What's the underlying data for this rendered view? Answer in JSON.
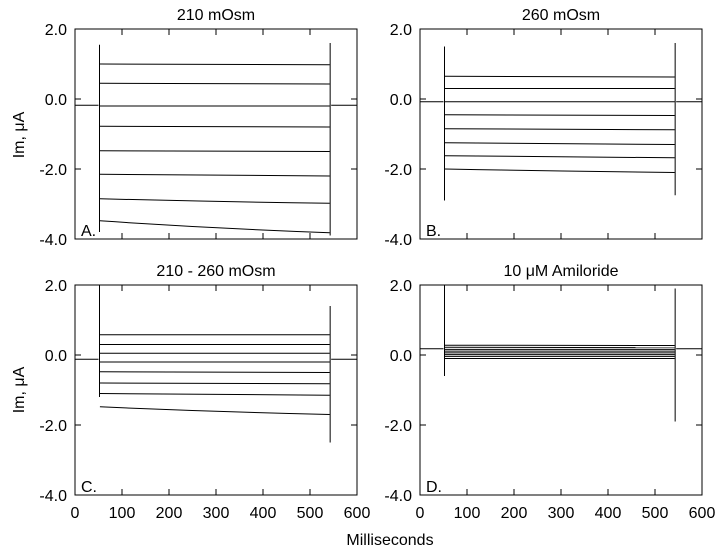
{
  "figure": {
    "xlabel": "Milliseconds",
    "ylabel": "Im, μA"
  },
  "chart_data": [
    {
      "type": "line",
      "title": "210 mOsm",
      "panel_label": "A.",
      "xlim": [
        0,
        600
      ],
      "ylim": [
        -4,
        2
      ],
      "xticks": [
        "0",
        "100",
        "200",
        "300",
        "400",
        "500",
        "600"
      ],
      "yticks": [
        "-4.0",
        "-2.0",
        "0.0",
        "2.0"
      ],
      "show_x_tick_labels": false,
      "show_y_tick_labels": true,
      "holding_current": -0.18,
      "pulse_start_ms": 50,
      "pulse_end_ms": 545,
      "steps": [
        {
          "start": 1.0,
          "end": 0.98
        },
        {
          "start": 0.45,
          "end": 0.43
        },
        {
          "start": -0.2,
          "end": -0.2
        },
        {
          "start": -0.78,
          "end": -0.8
        },
        {
          "start": -1.48,
          "end": -1.5
        },
        {
          "start": -2.15,
          "end": -2.2
        },
        {
          "start": -2.85,
          "end": -2.98
        },
        {
          "start": -3.48,
          "end": -3.82
        }
      ],
      "spike": {
        "on_max": 1.55,
        "on_min": -3.8,
        "off_max": 1.6,
        "off_min": -3.9
      }
    },
    {
      "type": "line",
      "title": "260 mOsm",
      "panel_label": "B.",
      "xlim": [
        0,
        600
      ],
      "ylim": [
        -4,
        2
      ],
      "xticks": [
        "0",
        "100",
        "200",
        "300",
        "400",
        "500",
        "600"
      ],
      "yticks": [
        "-4.0",
        "-2.0",
        "0.0",
        "2.0"
      ],
      "show_x_tick_labels": false,
      "show_y_tick_labels": true,
      "holding_current": -0.08,
      "pulse_start_ms": 50,
      "pulse_end_ms": 545,
      "steps": [
        {
          "start": 0.65,
          "end": 0.63
        },
        {
          "start": 0.3,
          "end": 0.3
        },
        {
          "start": -0.08,
          "end": -0.08
        },
        {
          "start": -0.45,
          "end": -0.47
        },
        {
          "start": -0.85,
          "end": -0.88
        },
        {
          "start": -1.25,
          "end": -1.3
        },
        {
          "start": -1.62,
          "end": -1.68
        },
        {
          "start": -2.0,
          "end": -2.1
        }
      ],
      "spike": {
        "on_max": 1.5,
        "on_min": -2.9,
        "off_max": 1.6,
        "off_min": -2.75
      }
    },
    {
      "type": "line",
      "title": "210 - 260 mOsm",
      "panel_label": "C.",
      "xlim": [
        0,
        600
      ],
      "ylim": [
        -4,
        2
      ],
      "xticks": [
        "0",
        "100",
        "200",
        "300",
        "400",
        "500",
        "600"
      ],
      "yticks": [
        "-4.0",
        "-2.0",
        "0.0",
        "2.0"
      ],
      "show_x_tick_labels": true,
      "show_y_tick_labels": true,
      "holding_current": -0.12,
      "pulse_start_ms": 50,
      "pulse_end_ms": 545,
      "steps": [
        {
          "start": 0.58,
          "end": 0.58
        },
        {
          "start": 0.3,
          "end": 0.3
        },
        {
          "start": 0.05,
          "end": 0.05
        },
        {
          "start": -0.2,
          "end": -0.2
        },
        {
          "start": -0.48,
          "end": -0.5
        },
        {
          "start": -0.8,
          "end": -0.82
        },
        {
          "start": -1.1,
          "end": -1.15
        },
        {
          "start": -1.48,
          "end": -1.7
        }
      ],
      "spike": {
        "on_max": 2.0,
        "on_min": -1.2,
        "off_max": 1.4,
        "off_min": -2.5
      }
    },
    {
      "type": "line",
      "title": "10 μM Amiloride",
      "panel_label": "D.",
      "xlim": [
        0,
        600
      ],
      "ylim": [
        -4,
        2
      ],
      "xticks": [
        "0",
        "100",
        "200",
        "300",
        "400",
        "500",
        "600"
      ],
      "yticks": [
        "-4.0",
        "-2.0",
        "0.0",
        "2.0"
      ],
      "show_x_tick_labels": true,
      "show_y_tick_labels": true,
      "holding_current": 0.18,
      "pulse_start_ms": 50,
      "pulse_end_ms": 545,
      "steps": [
        {
          "start": 0.28,
          "end": 0.27
        },
        {
          "start": 0.22,
          "end": 0.21
        },
        {
          "start": 0.16,
          "end": 0.16
        },
        {
          "start": 0.11,
          "end": 0.11
        },
        {
          "start": 0.06,
          "end": 0.06
        },
        {
          "start": 0.01,
          "end": 0.01
        },
        {
          "start": -0.04,
          "end": -0.04
        },
        {
          "start": -0.1,
          "end": -0.1
        }
      ],
      "spike": {
        "on_max": 2.0,
        "on_min": -0.6,
        "off_max": 1.9,
        "off_min": -1.9
      }
    }
  ]
}
